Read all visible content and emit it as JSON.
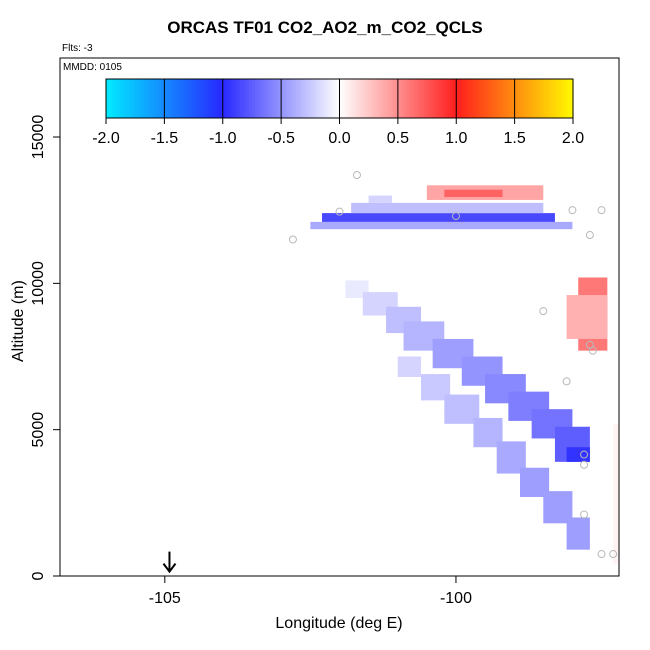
{
  "chart_data": {
    "type": "heatmap",
    "title": "ORCAS TF01 CO2_AO2_m_CO2_QCLS",
    "subtitle": "Flts: -3",
    "annotation": "MMDD: 0105",
    "xlabel": "Longitude (deg E)",
    "ylabel": "Altitude (m)",
    "xlim": [
      -106.8,
      -97.2
    ],
    "ylim": [
      0,
      17700
    ],
    "x_ticks": [
      -105,
      -100
    ],
    "x_tick_labels": [
      "-105",
      "-100"
    ],
    "y_ticks": [
      0,
      5000,
      10000,
      15000
    ],
    "y_tick_labels": [
      "0",
      "5000",
      "10000",
      "15000"
    ],
    "colorbar": {
      "range": [
        -2.0,
        2.0
      ],
      "ticks": [
        -2.0,
        -1.5,
        -1.0,
        -0.5,
        0.0,
        0.5,
        1.0,
        1.5,
        2.0
      ],
      "tick_labels": [
        "-2.0",
        "-1.5",
        "-1.0",
        "-0.5",
        "0.0",
        "0.5",
        "1.0",
        "1.5",
        "2.0"
      ]
    },
    "marker": {
      "longitude": -104.92,
      "altitude": 150,
      "symbol": "down-arrow"
    },
    "points": [
      {
        "lon": -101.7,
        "alt": 13700
      },
      {
        "lon": -102.0,
        "alt": 12450
      },
      {
        "lon": -102.8,
        "alt": 11500
      },
      {
        "lon": -100.0,
        "alt": 12300
      },
      {
        "lon": -98.0,
        "alt": 12500
      },
      {
        "lon": -97.5,
        "alt": 12500
      },
      {
        "lon": -97.7,
        "alt": 11650
      },
      {
        "lon": -98.5,
        "alt": 9050
      },
      {
        "lon": -97.7,
        "alt": 7900
      },
      {
        "lon": -97.65,
        "alt": 7700
      },
      {
        "lon": -98.1,
        "alt": 6650
      },
      {
        "lon": -97.8,
        "alt": 4150
      },
      {
        "lon": -97.8,
        "alt": 3800
      },
      {
        "lon": -97.8,
        "alt": 2100
      },
      {
        "lon": -97.5,
        "alt": 750
      },
      {
        "lon": -97.3,
        "alt": 750
      }
    ],
    "cells": [
      {
        "lon0": -100.5,
        "lon1": -98.5,
        "alt0": 12850,
        "alt1": 13350,
        "value": 0.4
      },
      {
        "lon0": -100.2,
        "lon1": -99.2,
        "alt0": 12950,
        "alt1": 13200,
        "value": 0.7
      },
      {
        "lon0": -102.5,
        "lon1": -98.0,
        "alt0": 11850,
        "alt1": 12100,
        "value": -0.4
      },
      {
        "lon0": -102.3,
        "lon1": -98.3,
        "alt0": 12100,
        "alt1": 12400,
        "value": -0.85
      },
      {
        "lon0": -101.8,
        "lon1": -98.5,
        "alt0": 12400,
        "alt1": 12750,
        "value": -0.3
      },
      {
        "lon0": -101.5,
        "lon1": -101.1,
        "alt0": 12750,
        "alt1": 13000,
        "value": -0.2
      },
      {
        "lon0": -97.9,
        "lon1": -97.4,
        "alt0": 7700,
        "alt1": 10200,
        "value": 0.6
      },
      {
        "lon0": -98.1,
        "lon1": -97.4,
        "alt0": 8100,
        "alt1": 9600,
        "value": 0.35
      },
      {
        "lon0": -97.3,
        "lon1": -97.2,
        "alt0": 400,
        "alt1": 5200,
        "value": 0.05
      },
      {
        "lon0": -101.9,
        "lon1": -101.5,
        "alt0": 9500,
        "alt1": 10100,
        "value": -0.1
      },
      {
        "lon0": -101.6,
        "lon1": -101.0,
        "alt0": 8900,
        "alt1": 9700,
        "value": -0.2
      },
      {
        "lon0": -101.2,
        "lon1": -100.6,
        "alt0": 8300,
        "alt1": 9200,
        "value": -0.3
      },
      {
        "lon0": -100.9,
        "lon1": -100.2,
        "alt0": 7700,
        "alt1": 8700,
        "value": -0.35
      },
      {
        "lon0": -100.4,
        "lon1": -99.7,
        "alt0": 7100,
        "alt1": 8100,
        "value": -0.45
      },
      {
        "lon0": -99.9,
        "lon1": -99.2,
        "alt0": 6500,
        "alt1": 7500,
        "value": -0.5
      },
      {
        "lon0": -99.5,
        "lon1": -98.8,
        "alt0": 5900,
        "alt1": 6900,
        "value": -0.55
      },
      {
        "lon0": -99.1,
        "lon1": -98.4,
        "alt0": 5300,
        "alt1": 6300,
        "value": -0.6
      },
      {
        "lon0": -98.7,
        "lon1": -98.0,
        "alt0": 4700,
        "alt1": 5700,
        "value": -0.65
      },
      {
        "lon0": -98.3,
        "lon1": -97.7,
        "alt0": 3900,
        "alt1": 5100,
        "value": -0.75
      },
      {
        "lon0": -98.1,
        "lon1": -97.7,
        "alt0": 3900,
        "alt1": 4400,
        "value": -0.95
      },
      {
        "lon0": -101.0,
        "lon1": -100.6,
        "alt0": 6800,
        "alt1": 7500,
        "value": -0.2
      },
      {
        "lon0": -100.6,
        "lon1": -100.1,
        "alt0": 6000,
        "alt1": 6900,
        "value": -0.25
      },
      {
        "lon0": -100.2,
        "lon1": -99.6,
        "alt0": 5200,
        "alt1": 6200,
        "value": -0.3
      },
      {
        "lon0": -99.7,
        "lon1": -99.2,
        "alt0": 4400,
        "alt1": 5400,
        "value": -0.35
      },
      {
        "lon0": -99.3,
        "lon1": -98.8,
        "alt0": 3500,
        "alt1": 4600,
        "value": -0.4
      },
      {
        "lon0": -98.9,
        "lon1": -98.4,
        "alt0": 2700,
        "alt1": 3700,
        "value": -0.45
      },
      {
        "lon0": -98.5,
        "lon1": -98.0,
        "alt0": 1800,
        "alt1": 2900,
        "value": -0.45
      },
      {
        "lon0": -98.1,
        "lon1": -97.7,
        "alt0": 900,
        "alt1": 2000,
        "value": -0.45
      }
    ]
  }
}
